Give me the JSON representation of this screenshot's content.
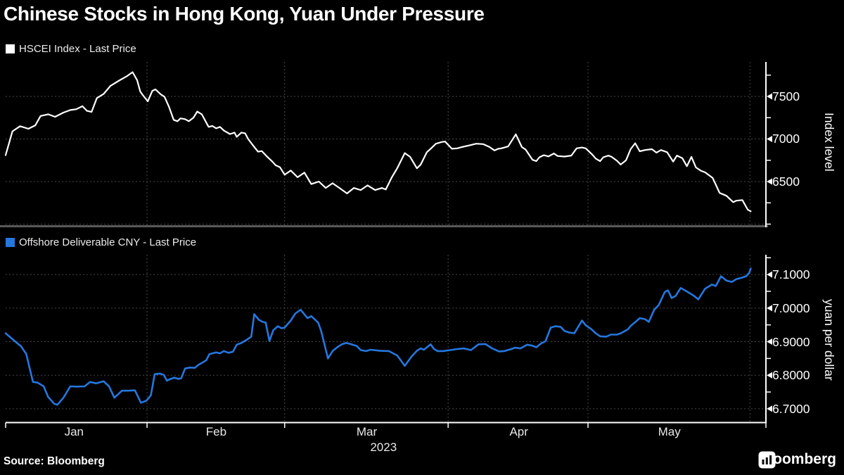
{
  "title": "Chinese Stocks in Hong Kong, Yuan Under Pressure",
  "source_label": "Source: Bloomberg",
  "brand_wordmark": "Bloomberg",
  "x_axis": {
    "months": [
      {
        "label": "Jan",
        "f": 0.09
      },
      {
        "label": "Feb",
        "f": 0.277
      },
      {
        "label": "Mar",
        "f": 0.475
      },
      {
        "label": "Apr",
        "f": 0.675
      },
      {
        "label": "May",
        "f": 0.873
      }
    ],
    "year": "2023",
    "year_f": 0.497,
    "month_boundaries_f": [
      0.186,
      0.367,
      0.582,
      0.766
    ],
    "end_marker_f": 0.979
  },
  "chart_data": [
    {
      "type": "line",
      "title": "HSCEI Index - Last Price",
      "series_name": "HSCEI Index",
      "line_color": "#ffffff",
      "ylabel": "Index level",
      "ylim": [
        5971,
        7905
      ],
      "yticks": [
        {
          "label": "7500",
          "v": 7500
        },
        {
          "label": "7000",
          "v": 7000
        },
        {
          "label": "6500",
          "v": 6500
        }
      ],
      "minor_yticks": [
        7750,
        7250,
        6750,
        6250,
        6000
      ],
      "gridlines": [
        7500,
        7000,
        6500,
        6000
      ],
      "legend_position": "top-left",
      "grid": true,
      "points": [
        [
          0.0,
          6810
        ],
        [
          0.009,
          7090
        ],
        [
          0.019,
          7150
        ],
        [
          0.03,
          7120
        ],
        [
          0.039,
          7160
        ],
        [
          0.046,
          7270
        ],
        [
          0.056,
          7290
        ],
        [
          0.065,
          7260
        ],
        [
          0.076,
          7310
        ],
        [
          0.085,
          7340
        ],
        [
          0.093,
          7350
        ],
        [
          0.101,
          7385
        ],
        [
          0.107,
          7330
        ],
        [
          0.113,
          7318
        ],
        [
          0.12,
          7480
        ],
        [
          0.129,
          7530
        ],
        [
          0.138,
          7625
        ],
        [
          0.15,
          7690
        ],
        [
          0.159,
          7735
        ],
        [
          0.167,
          7785
        ],
        [
          0.173,
          7690
        ],
        [
          0.177,
          7560
        ],
        [
          0.18,
          7520
        ],
        [
          0.187,
          7442
        ],
        [
          0.193,
          7565
        ],
        [
          0.197,
          7583
        ],
        [
          0.204,
          7525
        ],
        [
          0.209,
          7495
        ],
        [
          0.215,
          7375
        ],
        [
          0.221,
          7225
        ],
        [
          0.226,
          7208
        ],
        [
          0.23,
          7242
        ],
        [
          0.236,
          7233
        ],
        [
          0.241,
          7208
        ],
        [
          0.247,
          7250
        ],
        [
          0.252,
          7322
        ],
        [
          0.258,
          7290
        ],
        [
          0.267,
          7142
        ],
        [
          0.272,
          7153
        ],
        [
          0.277,
          7125
        ],
        [
          0.282,
          7142
        ],
        [
          0.287,
          7100
        ],
        [
          0.295,
          7058
        ],
        [
          0.301,
          7075
        ],
        [
          0.304,
          7025
        ],
        [
          0.31,
          7075
        ],
        [
          0.315,
          7067
        ],
        [
          0.319,
          7000
        ],
        [
          0.326,
          6917
        ],
        [
          0.332,
          6850
        ],
        [
          0.337,
          6858
        ],
        [
          0.344,
          6792
        ],
        [
          0.351,
          6733
        ],
        [
          0.355,
          6692
        ],
        [
          0.361,
          6667
        ],
        [
          0.367,
          6580
        ],
        [
          0.375,
          6630
        ],
        [
          0.384,
          6550
        ],
        [
          0.393,
          6605
        ],
        [
          0.402,
          6470
        ],
        [
          0.412,
          6500
        ],
        [
          0.421,
          6425
        ],
        [
          0.43,
          6480
        ],
        [
          0.439,
          6425
        ],
        [
          0.449,
          6360
        ],
        [
          0.458,
          6425
        ],
        [
          0.467,
          6400
        ],
        [
          0.476,
          6455
        ],
        [
          0.486,
          6400
        ],
        [
          0.495,
          6425
        ],
        [
          0.5,
          6407
        ],
        [
          0.508,
          6550
        ],
        [
          0.515,
          6655
        ],
        [
          0.525,
          6835
        ],
        [
          0.532,
          6790
        ],
        [
          0.541,
          6655
        ],
        [
          0.546,
          6700
        ],
        [
          0.554,
          6845
        ],
        [
          0.559,
          6885
        ],
        [
          0.566,
          6945
        ],
        [
          0.574,
          6965
        ],
        [
          0.578,
          6970
        ],
        [
          0.587,
          6885
        ],
        [
          0.594,
          6890
        ],
        [
          0.6,
          6905
        ],
        [
          0.61,
          6925
        ],
        [
          0.619,
          6945
        ],
        [
          0.628,
          6940
        ],
        [
          0.636,
          6908
        ],
        [
          0.643,
          6865
        ],
        [
          0.648,
          6885
        ],
        [
          0.652,
          6890
        ],
        [
          0.661,
          6912
        ],
        [
          0.671,
          7055
        ],
        [
          0.679,
          6905
        ],
        [
          0.684,
          6875
        ],
        [
          0.693,
          6755
        ],
        [
          0.698,
          6740
        ],
        [
          0.702,
          6785
        ],
        [
          0.708,
          6810
        ],
        [
          0.714,
          6795
        ],
        [
          0.721,
          6830
        ],
        [
          0.726,
          6800
        ],
        [
          0.735,
          6793
        ],
        [
          0.744,
          6805
        ],
        [
          0.751,
          6890
        ],
        [
          0.758,
          6900
        ],
        [
          0.763,
          6890
        ],
        [
          0.772,
          6813
        ],
        [
          0.776,
          6770
        ],
        [
          0.782,
          6740
        ],
        [
          0.786,
          6785
        ],
        [
          0.793,
          6805
        ],
        [
          0.797,
          6790
        ],
        [
          0.804,
          6745
        ],
        [
          0.809,
          6700
        ],
        [
          0.816,
          6750
        ],
        [
          0.822,
          6880
        ],
        [
          0.828,
          6950
        ],
        [
          0.834,
          6855
        ],
        [
          0.841,
          6870
        ],
        [
          0.85,
          6880
        ],
        [
          0.856,
          6840
        ],
        [
          0.862,
          6870
        ],
        [
          0.87,
          6845
        ],
        [
          0.878,
          6735
        ],
        [
          0.883,
          6805
        ],
        [
          0.89,
          6775
        ],
        [
          0.896,
          6680
        ],
        [
          0.902,
          6790
        ],
        [
          0.908,
          6665
        ],
        [
          0.915,
          6625
        ],
        [
          0.92,
          6608
        ],
        [
          0.93,
          6542
        ],
        [
          0.939,
          6367
        ],
        [
          0.948,
          6333
        ],
        [
          0.957,
          6258
        ],
        [
          0.961,
          6275
        ],
        [
          0.969,
          6283
        ],
        [
          0.976,
          6170
        ],
        [
          0.98,
          6150
        ]
      ]
    },
    {
      "type": "line",
      "title": "Offshore Deliverable CNY - Last Price",
      "series_name": "Offshore Deliverable CNY",
      "line_color": "#2577de",
      "ylabel": "yuan per dollar",
      "ylim": [
        6.66,
        7.159
      ],
      "yticks": [
        {
          "label": "7.1000",
          "v": 7.1
        },
        {
          "label": "7.0000",
          "v": 7.0
        },
        {
          "label": "6.9000",
          "v": 6.9
        },
        {
          "label": "6.8000",
          "v": 6.8
        },
        {
          "label": "6.7000",
          "v": 6.7
        }
      ],
      "minor_yticks": [
        7.15,
        7.05,
        6.95,
        6.85,
        6.75
      ],
      "gridlines": [
        7.1,
        7.0,
        6.9,
        6.8,
        6.7
      ],
      "legend_position": "top-left",
      "grid": true,
      "points": [
        [
          0.0,
          6.925
        ],
        [
          0.016,
          6.894
        ],
        [
          0.02,
          6.887
        ],
        [
          0.027,
          6.864
        ],
        [
          0.036,
          6.78
        ],
        [
          0.042,
          6.778
        ],
        [
          0.05,
          6.767
        ],
        [
          0.056,
          6.735
        ],
        [
          0.064,
          6.715
        ],
        [
          0.068,
          6.712
        ],
        [
          0.076,
          6.733
        ],
        [
          0.085,
          6.767
        ],
        [
          0.094,
          6.766
        ],
        [
          0.104,
          6.767
        ],
        [
          0.111,
          6.78
        ],
        [
          0.119,
          6.776
        ],
        [
          0.129,
          6.782
        ],
        [
          0.136,
          6.767
        ],
        [
          0.143,
          6.733
        ],
        [
          0.153,
          6.754
        ],
        [
          0.161,
          6.754
        ],
        [
          0.17,
          6.755
        ],
        [
          0.178,
          6.718
        ],
        [
          0.185,
          6.724
        ],
        [
          0.191,
          6.74
        ],
        [
          0.196,
          6.803
        ],
        [
          0.203,
          6.805
        ],
        [
          0.208,
          6.801
        ],
        [
          0.212,
          6.784
        ],
        [
          0.217,
          6.789
        ],
        [
          0.222,
          6.793
        ],
        [
          0.227,
          6.789
        ],
        [
          0.231,
          6.791
        ],
        [
          0.236,
          6.82
        ],
        [
          0.242,
          6.823
        ],
        [
          0.249,
          6.822
        ],
        [
          0.253,
          6.83
        ],
        [
          0.259,
          6.838
        ],
        [
          0.264,
          6.845
        ],
        [
          0.268,
          6.863
        ],
        [
          0.277,
          6.868
        ],
        [
          0.282,
          6.865
        ],
        [
          0.287,
          6.872
        ],
        [
          0.293,
          6.867
        ],
        [
          0.299,
          6.87
        ],
        [
          0.304,
          6.891
        ],
        [
          0.31,
          6.896
        ],
        [
          0.318,
          6.907
        ],
        [
          0.323,
          6.915
        ],
        [
          0.327,
          6.982
        ],
        [
          0.333,
          6.965
        ],
        [
          0.338,
          6.959
        ],
        [
          0.342,
          6.957
        ],
        [
          0.347,
          6.902
        ],
        [
          0.352,
          6.934
        ],
        [
          0.358,
          6.946
        ],
        [
          0.363,
          6.94
        ],
        [
          0.367,
          6.942
        ],
        [
          0.375,
          6.963
        ],
        [
          0.381,
          6.984
        ],
        [
          0.388,
          6.995
        ],
        [
          0.397,
          6.97
        ],
        [
          0.402,
          6.976
        ],
        [
          0.411,
          6.957
        ],
        [
          0.415,
          6.932
        ],
        [
          0.424,
          6.85
        ],
        [
          0.43,
          6.872
        ],
        [
          0.437,
          6.885
        ],
        [
          0.443,
          6.893
        ],
        [
          0.448,
          6.896
        ],
        [
          0.452,
          6.894
        ],
        [
          0.462,
          6.887
        ],
        [
          0.467,
          6.875
        ],
        [
          0.474,
          6.872
        ],
        [
          0.48,
          6.876
        ],
        [
          0.492,
          6.873
        ],
        [
          0.504,
          6.872
        ],
        [
          0.515,
          6.859
        ],
        [
          0.525,
          6.828
        ],
        [
          0.534,
          6.856
        ],
        [
          0.541,
          6.873
        ],
        [
          0.546,
          6.88
        ],
        [
          0.55,
          6.876
        ],
        [
          0.559,
          6.892
        ],
        [
          0.563,
          6.879
        ],
        [
          0.568,
          6.872
        ],
        [
          0.575,
          6.872
        ],
        [
          0.585,
          6.875
        ],
        [
          0.594,
          6.878
        ],
        [
          0.603,
          6.88
        ],
        [
          0.612,
          6.875
        ],
        [
          0.622,
          6.892
        ],
        [
          0.631,
          6.893
        ],
        [
          0.64,
          6.88
        ],
        [
          0.649,
          6.871
        ],
        [
          0.656,
          6.872
        ],
        [
          0.665,
          6.878
        ],
        [
          0.67,
          6.882
        ],
        [
          0.677,
          6.88
        ],
        [
          0.686,
          6.891
        ],
        [
          0.693,
          6.888
        ],
        [
          0.698,
          6.883
        ],
        [
          0.705,
          6.896
        ],
        [
          0.71,
          6.901
        ],
        [
          0.717,
          6.942
        ],
        [
          0.723,
          6.946
        ],
        [
          0.73,
          6.944
        ],
        [
          0.735,
          6.932
        ],
        [
          0.742,
          6.927
        ],
        [
          0.748,
          6.925
        ],
        [
          0.758,
          6.963
        ],
        [
          0.763,
          6.949
        ],
        [
          0.77,
          6.938
        ],
        [
          0.776,
          6.925
        ],
        [
          0.782,
          6.916
        ],
        [
          0.79,
          6.915
        ],
        [
          0.796,
          6.921
        ],
        [
          0.804,
          6.921
        ],
        [
          0.809,
          6.925
        ],
        [
          0.818,
          6.936
        ],
        [
          0.823,
          6.949
        ],
        [
          0.83,
          6.962
        ],
        [
          0.834,
          6.97
        ],
        [
          0.841,
          6.967
        ],
        [
          0.846,
          6.959
        ],
        [
          0.853,
          6.995
        ],
        [
          0.859,
          7.009
        ],
        [
          0.867,
          7.048
        ],
        [
          0.871,
          7.053
        ],
        [
          0.876,
          7.03
        ],
        [
          0.881,
          7.036
        ],
        [
          0.888,
          7.06
        ],
        [
          0.897,
          7.048
        ],
        [
          0.905,
          7.037
        ],
        [
          0.911,
          7.026
        ],
        [
          0.92,
          7.058
        ],
        [
          0.929,
          7.07
        ],
        [
          0.934,
          7.066
        ],
        [
          0.941,
          7.095
        ],
        [
          0.948,
          7.082
        ],
        [
          0.955,
          7.078
        ],
        [
          0.961,
          7.086
        ],
        [
          0.969,
          7.091
        ],
        [
          0.974,
          7.095
        ],
        [
          0.978,
          7.105
        ],
        [
          0.98,
          7.118
        ]
      ]
    }
  ]
}
